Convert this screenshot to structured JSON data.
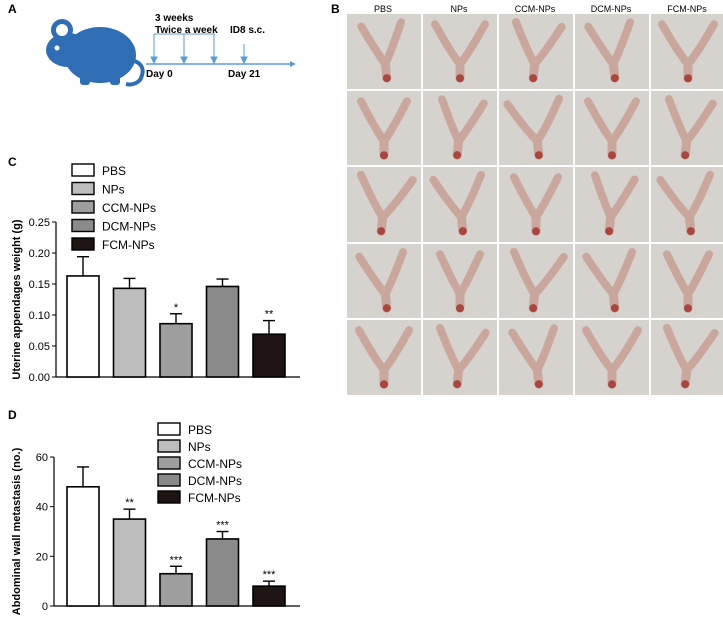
{
  "panel_a": {
    "letter": "A",
    "label_weeks": "3 weeks",
    "label_freq": "Twice a week",
    "label_id8": "ID8 s.c.",
    "label_day0": "Day 0",
    "label_day21": "Day 21",
    "colors": {
      "mouse": "#2f6db5",
      "axis": "#5b9bd5"
    },
    "icon": "mouse-icon"
  },
  "panel_b": {
    "letter": "B",
    "columns": [
      "PBS",
      "NPs",
      "CCM-NPs",
      "DCM-NPs",
      "FCM-NPs"
    ],
    "rows": 5,
    "colors": {
      "tissue": "#c9a79c",
      "tissue_dark": "#a9463f",
      "background": "#d6d3cf"
    }
  },
  "panel_c": {
    "letter": "C"
  },
  "panel_d": {
    "letter": "D"
  },
  "chart_data": [
    {
      "type": "bar",
      "panel": "C",
      "categories": [
        "PBS",
        "NPs",
        "CCM-NPs",
        "DCM-NPs",
        "FCM-NPs"
      ],
      "values": [
        0.163,
        0.143,
        0.086,
        0.146,
        0.069
      ],
      "errors": [
        0.031,
        0.016,
        0.016,
        0.012,
        0.022
      ],
      "significance": [
        "",
        "",
        "*",
        "",
        "**"
      ],
      "colors": [
        "#ffffff",
        "#bdbdbd",
        "#9e9e9e",
        "#8a8a8a",
        "#1e1414"
      ],
      "legend": [
        "PBS",
        "NPs",
        "CCM-NPs",
        "DCM-NPs",
        "FCM-NPs"
      ],
      "ylabel": "Uterine appendages weight (g)",
      "ylim": [
        0,
        0.25
      ],
      "yticks": [
        "0.00",
        "0.05",
        "0.10",
        "0.15",
        "0.20",
        "0.25"
      ],
      "legend_position": "top-left"
    },
    {
      "type": "bar",
      "panel": "D",
      "categories": [
        "PBS",
        "NPs",
        "CCM-NPs",
        "DCM-NPs",
        "FCM-NPs"
      ],
      "values": [
        48,
        35,
        13,
        27,
        8
      ],
      "errors": [
        8,
        4,
        3,
        3,
        2
      ],
      "significance": [
        "",
        "**",
        "***",
        "***",
        "***"
      ],
      "colors": [
        "#ffffff",
        "#bdbdbd",
        "#9e9e9e",
        "#8a8a8a",
        "#1e1414"
      ],
      "legend": [
        "PBS",
        "NPs",
        "CCM-NPs",
        "DCM-NPs",
        "FCM-NPs"
      ],
      "ylabel": "Abdominal wall metastasis (no.)",
      "ylim": [
        0,
        60
      ],
      "yticks": [
        "0",
        "20",
        "40",
        "60"
      ],
      "legend_position": "top-right"
    }
  ]
}
